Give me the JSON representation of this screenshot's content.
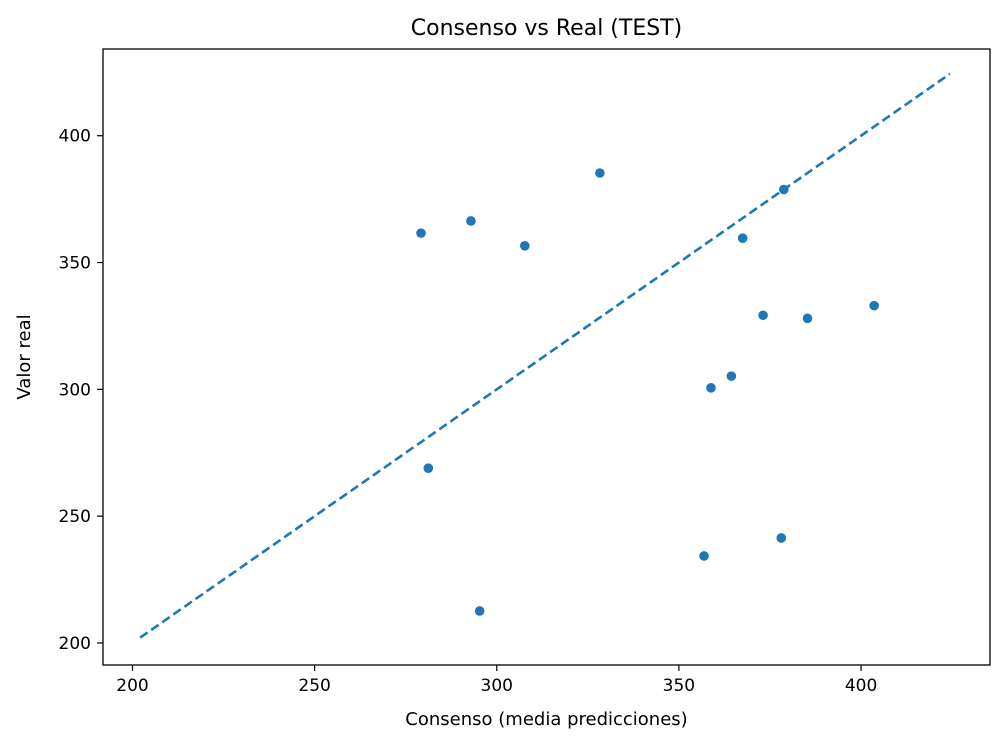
{
  "chart_data": {
    "type": "scatter",
    "title": "Consenso vs Real (TEST)",
    "xlabel": "Consenso (media predicciones)",
    "ylabel": "Valor real",
    "xlim": [
      191.9,
      435.4
    ],
    "ylim": [
      191.3,
      434.2
    ],
    "xticks": [
      200,
      250,
      300,
      350,
      400
    ],
    "yticks": [
      200,
      250,
      300,
      350,
      400
    ],
    "grid": false,
    "color": "#1f77b4",
    "series": [
      {
        "points": [
          {
            "x": 279.2,
            "y": 361.6
          },
          {
            "x": 281.2,
            "y": 268.9
          },
          {
            "x": 292.9,
            "y": 366.4
          },
          {
            "x": 295.3,
            "y": 212.6
          },
          {
            "x": 307.7,
            "y": 356.6
          },
          {
            "x": 328.3,
            "y": 385.3
          },
          {
            "x": 356.9,
            "y": 234.3
          },
          {
            "x": 358.8,
            "y": 300.6
          },
          {
            "x": 364.4,
            "y": 305.2
          },
          {
            "x": 367.5,
            "y": 359.6
          },
          {
            "x": 373.1,
            "y": 329.2
          },
          {
            "x": 378.1,
            "y": 241.4
          },
          {
            "x": 378.8,
            "y": 378.8
          },
          {
            "x": 385.3,
            "y": 328.0
          },
          {
            "x": 403.6,
            "y": 333.0
          }
        ]
      }
    ],
    "reference_line": {
      "style": "dashed",
      "from": {
        "x": 202.1,
        "y": 202.1
      },
      "to": {
        "x": 424.4,
        "y": 424.4
      }
    }
  }
}
